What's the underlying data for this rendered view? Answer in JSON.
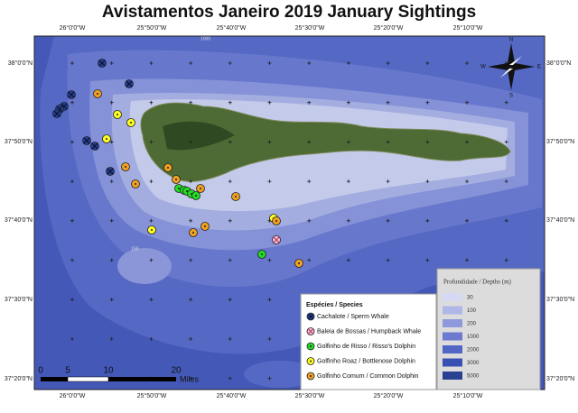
{
  "title": "Avistamentos Janeiro 2019 January Sightings",
  "longitude_labels": [
    "26°0'0\"W",
    "25°50'0\"W",
    "25°40'0\"W",
    "25°30'0\"W",
    "25°20'0\"W",
    "25°10'0\"W"
  ],
  "latitude_labels": [
    "38°0'0\"N",
    "37°50'0\"N",
    "37°40'0\"N",
    "37°30'0\"N",
    "37°20'0\"N"
  ],
  "species_legend": {
    "title": "Espécies / Species",
    "items": [
      "Cachalote / Sperm Whale",
      "Baleia de Bossas / Humpback Whale",
      "Golfinho de Risso / Risso's Dolphin",
      "Golfinho Roaz / Bottlenose Dolphin",
      "Golfinho Comum / Common Dolphin"
    ]
  },
  "depth_legend": {
    "title": "Profundidade / Depths (m)",
    "items": [
      "30",
      "100",
      "200",
      "1000",
      "2000",
      "3000",
      "5000"
    ]
  },
  "scale_bar": {
    "labels": [
      "0",
      "5",
      "10",
      "20"
    ],
    "unit": "Miles"
  },
  "contour_labels": [
    "1000",
    "159"
  ],
  "compass": [
    "N",
    "E",
    "S",
    "W"
  ]
}
